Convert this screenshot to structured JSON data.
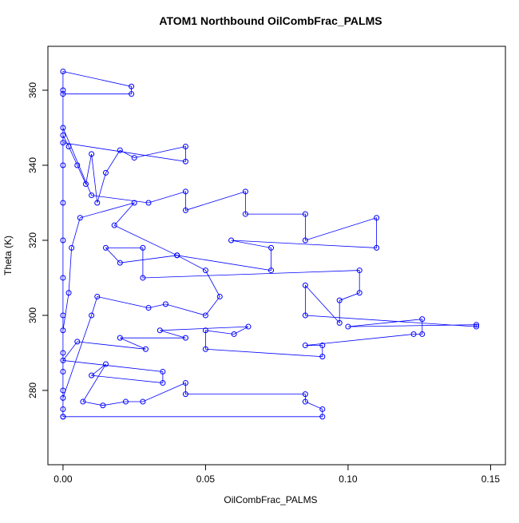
{
  "chart_data": {
    "type": "line",
    "title": "ATOM1 Northbound OilCombFrac_PALMS",
    "x_label": "OilCombFrac_PALMS",
    "y_label": "Theta (K)",
    "xlim": [
      -0.0053,
      0.1552
    ],
    "ylim": [
      260.2,
      371.7
    ],
    "xticks": [
      {
        "value": 0,
        "label": "0.00"
      },
      0.05,
      {
        "value": 0.1,
        "label": "0.10"
      },
      0.15
    ],
    "yticks": [
      280,
      300,
      320,
      340,
      360
    ],
    "grid": false,
    "series": [
      {
        "color": "#0000ff",
        "x": [
          0,
          0,
          0,
          0,
          0,
          0,
          0,
          0,
          0,
          0.002,
          0.005,
          0.008,
          0.01,
          0.012,
          0.015,
          0.02,
          0.025,
          0.043,
          0.043,
          0,
          0,
          0,
          0.024,
          0.024,
          0,
          0,
          0.01,
          0.03,
          0.043,
          0.043,
          0.064,
          0.064,
          0.085,
          0.085,
          0.11,
          0.11,
          0.059,
          0.073,
          0.073,
          0.04,
          0.02,
          0.015,
          0.028,
          0.028,
          0.104,
          0.104,
          0.097,
          0.097,
          0.085,
          0.085,
          0.145,
          0.145,
          0.1,
          0.126,
          0.126,
          0.123,
          0.085,
          0.091,
          0.091,
          0.05,
          0.05,
          0.06,
          0.065,
          0.034,
          0.043,
          0.02,
          0.029,
          0.005,
          0,
          0.035,
          0.035,
          0.01,
          0.015,
          0.007,
          0.014,
          0.022,
          0.028,
          0.043,
          0.043,
          0.085,
          0.085,
          0.091,
          0.091,
          0,
          0,
          0.01,
          0.012,
          0.03,
          0.036,
          0.05,
          0.055,
          0.05,
          0.04,
          0.018,
          0.025,
          0.006,
          0.003,
          0.002,
          0,
          0,
          0
        ],
        "values": [
          273,
          280,
          290,
          300,
          310,
          320,
          330,
          340,
          348,
          345,
          340,
          335,
          343,
          330,
          338,
          344,
          342,
          345,
          341,
          346,
          360,
          365,
          361,
          359,
          359,
          350,
          332,
          330,
          333,
          328,
          333,
          327,
          327,
          320,
          326,
          318,
          320,
          318,
          312,
          316,
          314,
          318,
          318,
          310,
          312,
          306,
          304,
          298,
          308,
          300,
          297,
          297.5,
          297,
          299,
          295,
          295,
          292,
          292,
          289,
          291,
          296,
          295,
          297,
          296,
          294,
          294,
          291,
          293,
          288,
          285,
          282,
          284,
          287,
          277,
          276,
          277,
          277,
          282,
          279,
          279,
          277,
          275,
          273,
          273,
          278,
          300,
          305,
          302,
          303,
          300,
          305,
          312,
          316,
          324,
          330,
          326,
          318,
          306,
          296,
          285,
          275
        ]
      }
    ]
  }
}
